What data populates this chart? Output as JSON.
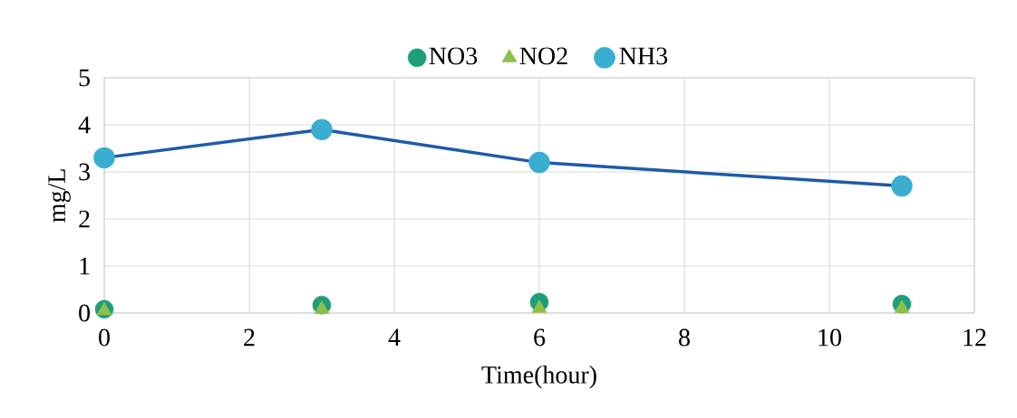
{
  "chart_data": {
    "type": "scatter",
    "xlabel": "Time(hour)",
    "ylabel": "mg/L",
    "x": [
      0,
      3,
      6,
      11
    ],
    "series": [
      {
        "name": "NO3",
        "color": "#1f9e7a",
        "marker": "circle",
        "values": [
          0.08,
          0.17,
          0.23,
          0.19
        ]
      },
      {
        "name": "NO2",
        "color": "#8cc04a",
        "marker": "triangle",
        "values": [
          0.05,
          0.08,
          0.1,
          0.1
        ]
      },
      {
        "name": "NH3",
        "type": "line",
        "color": "#3aaed0",
        "marker": "circle",
        "line_style": "solid",
        "values": [
          3.3,
          3.9,
          3.2,
          2.7
        ]
      }
    ],
    "xlim": [
      0,
      12
    ],
    "xticks": [
      0,
      2,
      4,
      6,
      8,
      10,
      12
    ],
    "ylim": [
      0,
      5
    ],
    "yticks": [
      0,
      1,
      2,
      3,
      4,
      5
    ],
    "grid": true,
    "legend": "top"
  }
}
